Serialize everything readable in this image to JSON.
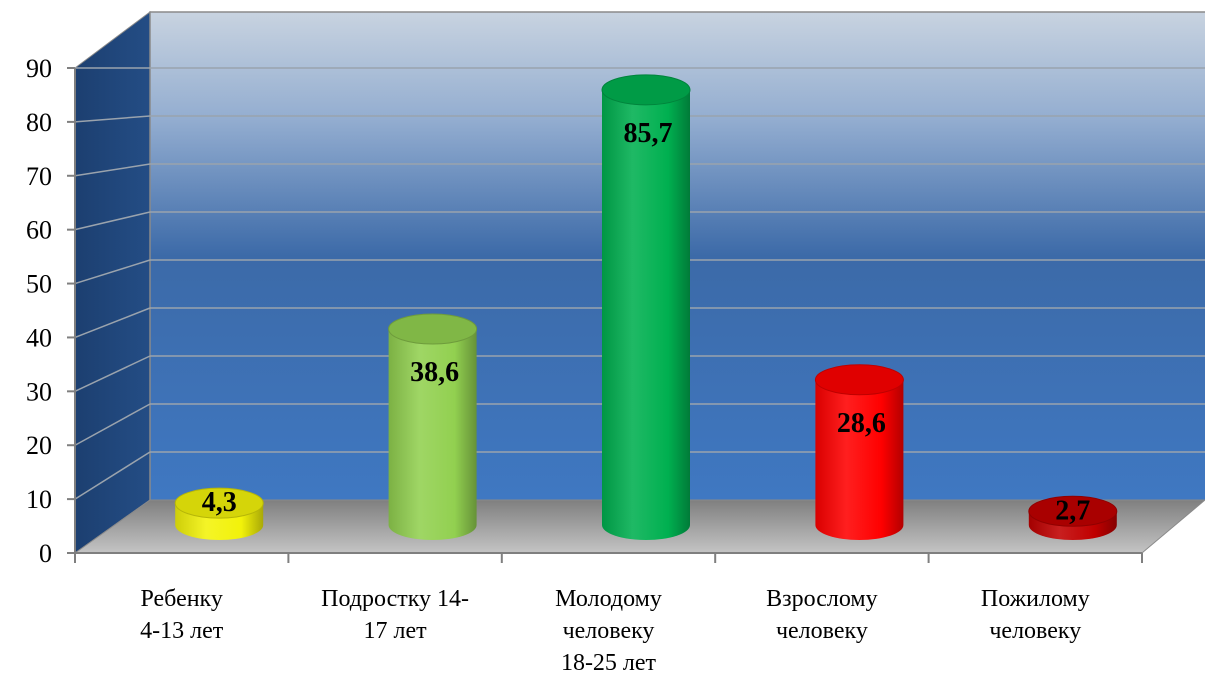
{
  "chart_data": {
    "type": "bar",
    "style": "3d-cylinder",
    "categories": [
      [
        "Ребенку",
        "4-13 лет"
      ],
      [
        "Подростку 14-",
        "17 лет"
      ],
      [
        "Молодому",
        "человеку",
        "18-25 лет"
      ],
      [
        "Взрослому",
        "человеку"
      ],
      [
        "Пожилому",
        "человеку"
      ]
    ],
    "values": [
      4.3,
      38.6,
      85.7,
      28.6,
      2.7
    ],
    "value_labels": [
      "4,3",
      "38,6",
      "85,7",
      "28,6",
      "2,7"
    ],
    "bar_colors": [
      "#f2f20a",
      "#92d050",
      "#00b050",
      "#ff0000",
      "#c00000"
    ],
    "ylim": [
      0,
      90
    ],
    "yticks": [
      0,
      10,
      20,
      30,
      40,
      50,
      60,
      70,
      80,
      90
    ],
    "grid": true,
    "legend": "none",
    "title": "",
    "xlabel": "",
    "ylabel": ""
  }
}
